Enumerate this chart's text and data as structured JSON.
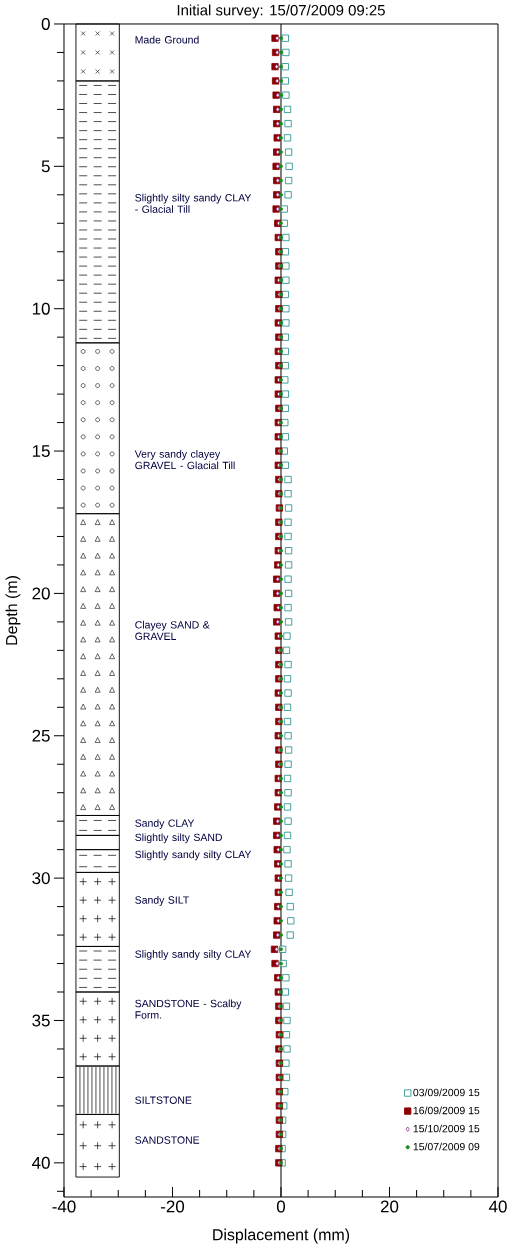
{
  "chart_data": {
    "type": "scatter",
    "title": "Initial survey: 15/07/2009 09:25",
    "xlabel": "Displacement (mm)",
    "ylabel": "Depth (m)",
    "xlim": [
      -40,
      40
    ],
    "ylim": [
      41.2,
      0
    ],
    "xticks": [
      -40,
      {
        "value": -35,
        "label": null
      },
      {
        "value": -30,
        "label": null
      },
      {
        "value": -25,
        "label": null
      },
      -20,
      {
        "value": -15,
        "label": null
      },
      {
        "value": -10,
        "label": null
      },
      {
        "value": -5,
        "label": null
      },
      0,
      {
        "value": 5,
        "label": null
      },
      {
        "value": 10,
        "label": null
      },
      {
        "value": 15,
        "label": null
      },
      20,
      {
        "value": 25,
        "label": null
      },
      {
        "value": 30,
        "label": null
      },
      {
        "value": 35,
        "label": null
      },
      40
    ],
    "yticks": [
      0,
      {
        "value": 1,
        "label": null
      },
      {
        "value": 2,
        "label": null
      },
      {
        "value": 3,
        "label": null
      },
      {
        "value": 4,
        "label": null
      },
      5,
      {
        "value": 6,
        "label": null
      },
      {
        "value": 7,
        "label": null
      },
      {
        "value": 8,
        "label": null
      },
      {
        "value": 9,
        "label": null
      },
      10,
      {
        "value": 11,
        "label": null
      },
      {
        "value": 12,
        "label": null
      },
      {
        "value": 13,
        "label": null
      },
      {
        "value": 14,
        "label": null
      },
      15,
      {
        "value": 16,
        "label": null
      },
      {
        "value": 17,
        "label": null
      },
      {
        "value": 18,
        "label": null
      },
      {
        "value": 19,
        "label": null
      },
      20,
      {
        "value": 21,
        "label": null
      },
      {
        "value": 22,
        "label": null
      },
      {
        "value": 23,
        "label": null
      },
      {
        "value": 24,
        "label": null
      },
      25,
      {
        "value": 26,
        "label": null
      },
      {
        "value": 27,
        "label": null
      },
      {
        "value": 28,
        "label": null
      },
      {
        "value": 29,
        "label": null
      },
      30,
      {
        "value": 31,
        "label": null
      },
      {
        "value": 32,
        "label": null
      },
      {
        "value": 33,
        "label": null
      },
      {
        "value": 34,
        "label": null
      },
      35,
      {
        "value": 36,
        "label": null
      },
      {
        "value": 37,
        "label": null
      },
      {
        "value": 38,
        "label": null
      },
      {
        "value": 39,
        "label": null
      },
      40,
      {
        "value": 41,
        "label": null
      }
    ],
    "legend": "bottom right",
    "grid": false,
    "ref_lines": [
      {
        "axis": "x",
        "value": 0
      }
    ],
    "annotations": [
      "Made Ground",
      "Slightly silty sandy CLAY - Glacial Till",
      "Very sandy clayey GRAVEL - Glacial Till",
      "Clayey SAND & GRAVEL",
      "Sandy CLAY",
      "Slightly silty SAND",
      "Slightly sandy silty CLAY",
      "Sandy SILT",
      "Slightly sandy silty CLAY",
      "SANDSTONE - Scalby Form.",
      "SILTSTONE",
      "SANDSTONE"
    ],
    "series": [
      {
        "name": "15/07/2009 09",
        "color": "#1a8a1a",
        "marker": "circle",
        "x": [
          0,
          0,
          0,
          0,
          0,
          0,
          0,
          0,
          0,
          0,
          0,
          0,
          0,
          0,
          0,
          0,
          0,
          0,
          0,
          0,
          0,
          0,
          0,
          0,
          0,
          0,
          0,
          0,
          0,
          0,
          0,
          0,
          0,
          0,
          0,
          0,
          0,
          0,
          0,
          0,
          0,
          0,
          0,
          0,
          0,
          0,
          0,
          0,
          0,
          0,
          0,
          0,
          0,
          0,
          0,
          0,
          0,
          0,
          0,
          0,
          0,
          0,
          0,
          0,
          0,
          0,
          0,
          0,
          0,
          0,
          0,
          0,
          0,
          0,
          0,
          0,
          0,
          0,
          0,
          0
        ],
        "values": [
          0.5,
          1,
          1.5,
          2,
          2.5,
          3,
          3.5,
          4,
          4.5,
          5,
          5.5,
          6,
          6.5,
          7,
          7.5,
          8,
          8.5,
          9,
          9.5,
          10,
          10.5,
          11,
          11.5,
          12,
          12.5,
          13,
          13.5,
          14,
          14.5,
          15,
          15.5,
          16,
          16.5,
          17,
          17.5,
          18,
          18.5,
          19,
          19.5,
          20,
          20.5,
          21,
          21.5,
          22,
          22.5,
          23,
          23.5,
          24,
          24.5,
          25,
          25.5,
          26,
          26.5,
          27,
          27.5,
          28,
          28.5,
          29,
          29.5,
          30,
          30.5,
          31,
          31.5,
          32,
          32.5,
          33,
          33.5,
          34,
          34.5,
          35,
          35.5,
          36,
          36.5,
          37,
          37.5,
          38,
          38.5,
          39,
          39.5,
          40
        ]
      },
      {
        "name": "03/09/2009 15",
        "color": "#1a8a8a",
        "marker": "square",
        "x": [
          0.8,
          0.9,
          0.8,
          0.8,
          0.9,
          1.2,
          1.3,
          1.2,
          1.4,
          1.5,
          1.4,
          1.3,
          0.6,
          0.6,
          0.9,
          0.8,
          0.9,
          0.9,
          0.8,
          0.9,
          0.9,
          0.8,
          0.8,
          0.8,
          0.7,
          0.8,
          0.8,
          0.7,
          0.8,
          0.6,
          0.8,
          1.3,
          1.3,
          1.4,
          1.3,
          1.3,
          1.4,
          1.4,
          1.3,
          1.4,
          1.3,
          1.4,
          1.1,
          1.0,
          1.3,
          1.2,
          1.3,
          1.2,
          1.2,
          1.3,
          1.4,
          1.3,
          1.2,
          1.3,
          1.2,
          1.3,
          1.2,
          1.1,
          1.3,
          1.4,
          1.5,
          1.7,
          1.8,
          1.7,
          0.3,
          0.4,
          0.9,
          0.8,
          1.0,
          1.1,
          1.0,
          1.1,
          0.9,
          1.0,
          0.7,
          0.5,
          0.3,
          0.3,
          0.2,
          0.2
        ],
        "values": [
          0.5,
          1,
          1.5,
          2,
          2.5,
          3,
          3.5,
          4,
          4.5,
          5,
          5.5,
          6,
          6.5,
          7,
          7.5,
          8,
          8.5,
          9,
          9.5,
          10,
          10.5,
          11,
          11.5,
          12,
          12.5,
          13,
          13.5,
          14,
          14.5,
          15,
          15.5,
          16,
          16.5,
          17,
          17.5,
          18,
          18.5,
          19,
          19.5,
          20,
          20.5,
          21,
          21.5,
          22,
          22.5,
          23,
          23.5,
          24,
          24.5,
          25,
          25.5,
          26,
          26.5,
          27,
          27.5,
          28,
          28.5,
          29,
          29.5,
          30,
          30.5,
          31,
          31.5,
          32,
          32.5,
          33,
          33.5,
          34,
          34.5,
          35,
          35.5,
          36,
          36.5,
          37,
          37.5,
          38,
          38.5,
          39,
          39.5,
          40
        ]
      },
      {
        "name": "16/09/2009 15",
        "color": "#8b0000",
        "marker": "square",
        "x": [
          -1.1,
          -1.0,
          -1.1,
          -1.0,
          -0.9,
          -0.8,
          -0.8,
          -0.7,
          -0.8,
          -0.9,
          -0.8,
          -0.8,
          -0.9,
          -0.6,
          -0.5,
          -0.4,
          -0.4,
          -0.5,
          -0.4,
          -0.4,
          -0.5,
          -0.4,
          -0.5,
          -0.4,
          -0.5,
          -0.5,
          -0.4,
          -0.5,
          -0.5,
          -0.4,
          -0.5,
          -0.4,
          -0.4,
          -0.3,
          -0.4,
          -0.4,
          -0.5,
          -0.6,
          -0.8,
          -0.8,
          -0.7,
          -0.8,
          -0.5,
          -0.4,
          -0.4,
          -0.4,
          -0.5,
          -0.4,
          -0.4,
          -0.5,
          -0.4,
          -0.4,
          -0.5,
          -0.5,
          -0.6,
          -0.8,
          -0.8,
          -0.7,
          -0.6,
          -0.5,
          -0.5,
          -0.6,
          -0.7,
          -0.8,
          -1.2,
          -1.1,
          -0.6,
          -0.5,
          -0.4,
          -0.4,
          -0.3,
          -0.4,
          -0.3,
          -0.3,
          -0.3,
          -0.3,
          -0.3,
          -0.3,
          -0.4,
          -0.4
        ],
        "values": [
          0.5,
          1,
          1.5,
          2,
          2.5,
          3,
          3.5,
          4,
          4.5,
          5,
          5.5,
          6,
          6.5,
          7,
          7.5,
          8,
          8.5,
          9,
          9.5,
          10,
          10.5,
          11,
          11.5,
          12,
          12.5,
          13,
          13.5,
          14,
          14.5,
          15,
          15.5,
          16,
          16.5,
          17,
          17.5,
          18,
          18.5,
          19,
          19.5,
          20,
          20.5,
          21,
          21.5,
          22,
          22.5,
          23,
          23.5,
          24,
          24.5,
          25,
          25.5,
          26,
          26.5,
          27,
          27.5,
          28,
          28.5,
          29,
          29.5,
          30,
          30.5,
          31,
          31.5,
          32,
          32.5,
          33,
          33.5,
          34,
          34.5,
          35,
          35.5,
          36,
          36.5,
          37,
          37.5,
          38,
          38.5,
          39,
          39.5,
          40
        ]
      },
      {
        "name": "15/10/2009 15",
        "color": "#8b2a8b",
        "marker": "diamond",
        "x": [
          -0.7,
          -0.7,
          -0.8,
          -0.7,
          -0.6,
          -0.6,
          -0.6,
          -0.5,
          -0.6,
          -0.6,
          -0.6,
          -0.6,
          -0.6,
          -0.4,
          -0.4,
          -0.3,
          -0.3,
          -0.4,
          -0.3,
          -0.3,
          -0.4,
          -0.3,
          -0.4,
          -0.3,
          -0.4,
          -0.4,
          -0.3,
          -0.4,
          -0.4,
          -0.3,
          -0.4,
          -0.3,
          -0.3,
          -0.3,
          -0.3,
          -0.3,
          -0.4,
          -0.5,
          -0.6,
          -0.6,
          -0.5,
          -0.6,
          -0.4,
          -0.3,
          -0.3,
          -0.3,
          -0.4,
          -0.3,
          -0.3,
          -0.4,
          -0.3,
          -0.3,
          -0.4,
          -0.4,
          -0.5,
          -0.6,
          -0.6,
          -0.5,
          -0.5,
          -0.4,
          -0.4,
          -0.5,
          -0.5,
          -0.6,
          -0.8,
          -0.7,
          -0.5,
          -0.4,
          -0.3,
          -0.3,
          -0.3,
          -0.3,
          -0.3,
          -0.3,
          -0.3,
          -0.3,
          -0.3,
          -0.3,
          -0.3,
          -0.3
        ],
        "values": [
          0.5,
          1,
          1.5,
          2,
          2.5,
          3,
          3.5,
          4,
          4.5,
          5,
          5.5,
          6,
          6.5,
          7,
          7.5,
          8,
          8.5,
          9,
          9.5,
          10,
          10.5,
          11,
          11.5,
          12,
          12.5,
          13,
          13.5,
          14,
          14.5,
          15,
          15.5,
          16,
          16.5,
          17,
          17.5,
          18,
          18.5,
          19,
          19.5,
          20,
          20.5,
          21,
          21.5,
          22,
          22.5,
          23,
          23.5,
          24,
          24.5,
          25,
          25.5,
          26,
          26.5,
          27,
          27.5,
          28,
          28.5,
          29,
          29.5,
          30,
          30.5,
          31,
          31.5,
          32,
          32.5,
          33,
          33.5,
          34,
          34.5,
          35,
          35.5,
          36,
          36.5,
          37,
          37.5,
          38,
          38.5,
          39,
          39.5,
          40
        ]
      }
    ]
  }
}
